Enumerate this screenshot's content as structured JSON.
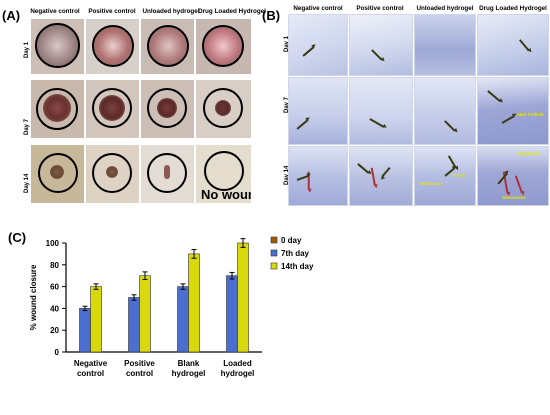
{
  "panels": {
    "a_label": "(A)",
    "b_label": "(B)",
    "c_label": "(C)"
  },
  "groups_a": [
    "Negative control",
    "Positive control",
    "Unloaded hydrogel",
    "Drug Loaded Hydrogel"
  ],
  "groups_b": [
    "Negative control",
    "Positive control",
    "Unloaded hydrogel",
    "Drug Loaded Hydrogel"
  ],
  "days": [
    "Day 1",
    "Day 7",
    "Day 14"
  ],
  "no_wound_text": "No wound",
  "histology_annotations": {
    "hair_follicle": "Hair Follicle",
    "epidermis": "Epidermis",
    "dermis": "Dermis",
    "sebaceous_1": "Sebaceous",
    "sebaceous_2": "Sebaceous"
  },
  "colors": {
    "day0": "#a05a00",
    "day7": "#4b6fd0",
    "day14": "#d8d80c",
    "error_bar": "#000000",
    "skin_fur": "#e8e2dc",
    "histology_bg": "#d9e0f2",
    "tissue": "#a9b1da"
  },
  "chart_data": {
    "type": "bar",
    "categories": [
      "Negative control",
      "Positive control",
      "Blank hydrogel",
      "Loaded hydrogel"
    ],
    "category_lines": [
      [
        "Negative",
        "control"
      ],
      [
        "Positive",
        "control"
      ],
      [
        "Blank",
        "hydrogel"
      ],
      [
        "Loaded",
        "hydrogel"
      ]
    ],
    "series": [
      {
        "name": "0 day",
        "values": [
          0,
          0,
          0,
          0
        ]
      },
      {
        "name": "7th day",
        "values": [
          40,
          50,
          60,
          70
        ],
        "errors": [
          2,
          2.5,
          2.5,
          3
        ]
      },
      {
        "name": "14th day",
        "values": [
          60,
          70,
          90,
          100
        ],
        "errors": [
          2.5,
          3.5,
          4,
          4
        ]
      }
    ],
    "ylabel": "% wound closure",
    "xlabel": "",
    "ylim": [
      0,
      100
    ],
    "yticks": [
      0,
      20,
      40,
      60,
      80,
      100
    ],
    "grid": false,
    "legend_position": "right"
  }
}
